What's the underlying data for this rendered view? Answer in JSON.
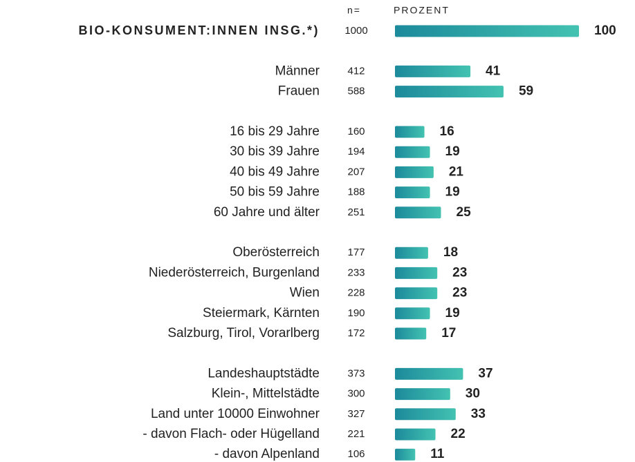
{
  "chart_data": {
    "type": "bar",
    "n_header": "n=",
    "value_header": "PROZENT",
    "xlim": [
      0,
      100
    ],
    "colors": [
      "#1c8a9b",
      "#43c2b1"
    ],
    "groups": [
      {
        "categories": [
          "BIO-KONSUMENT:INNEN INSG.*)"
        ],
        "n": [
          "1000"
        ],
        "values": [
          100
        ]
      },
      {
        "categories": [
          "Männer",
          "Frauen"
        ],
        "n": [
          "412",
          "588"
        ],
        "values": [
          41,
          59
        ]
      },
      {
        "categories": [
          "16 bis 29 Jahre",
          "30 bis 39 Jahre",
          "40 bis 49 Jahre",
          "50 bis 59 Jahre",
          "60 Jahre und älter"
        ],
        "n": [
          "160",
          "194",
          "207",
          "188",
          "251"
        ],
        "values": [
          16,
          19,
          21,
          19,
          25
        ]
      },
      {
        "categories": [
          "Oberösterreich",
          "Niederösterreich, Burgenland",
          "Wien",
          "Steiermark, Kärnten",
          "Salzburg, Tirol, Vorarlberg"
        ],
        "n": [
          "177",
          "233",
          "228",
          "190",
          "172"
        ],
        "values": [
          18,
          23,
          23,
          19,
          17
        ]
      },
      {
        "categories": [
          "Landeshauptstädte",
          "Klein-, Mittelstädte",
          "Land unter 10000 Einwohner",
          "- davon Flach- oder Hügelland",
          "- davon Alpenland"
        ],
        "n": [
          "373",
          "300",
          "327",
          "221",
          "106"
        ],
        "values": [
          37,
          30,
          33,
          22,
          11
        ]
      }
    ]
  }
}
